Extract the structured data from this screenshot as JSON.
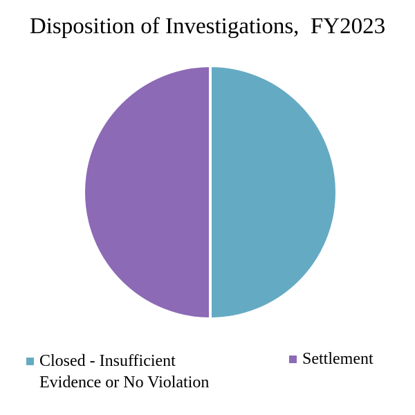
{
  "chart_data": {
    "type": "pie",
    "title": "Disposition of Investigations,  FY2023",
    "categories": [
      "Closed - Insufficient Evidence or No Violation",
      "Settlement"
    ],
    "values": [
      50,
      50
    ],
    "colors": [
      "#65aac3",
      "#8c6ab6"
    ],
    "legend_position": "bottom",
    "legend": [
      {
        "lines": [
          "Closed - Insufficient",
          "Evidence or No Violation"
        ],
        "color": "#65aac3"
      },
      {
        "lines": [
          "Settlement"
        ],
        "color": "#8c6ab6"
      }
    ]
  }
}
